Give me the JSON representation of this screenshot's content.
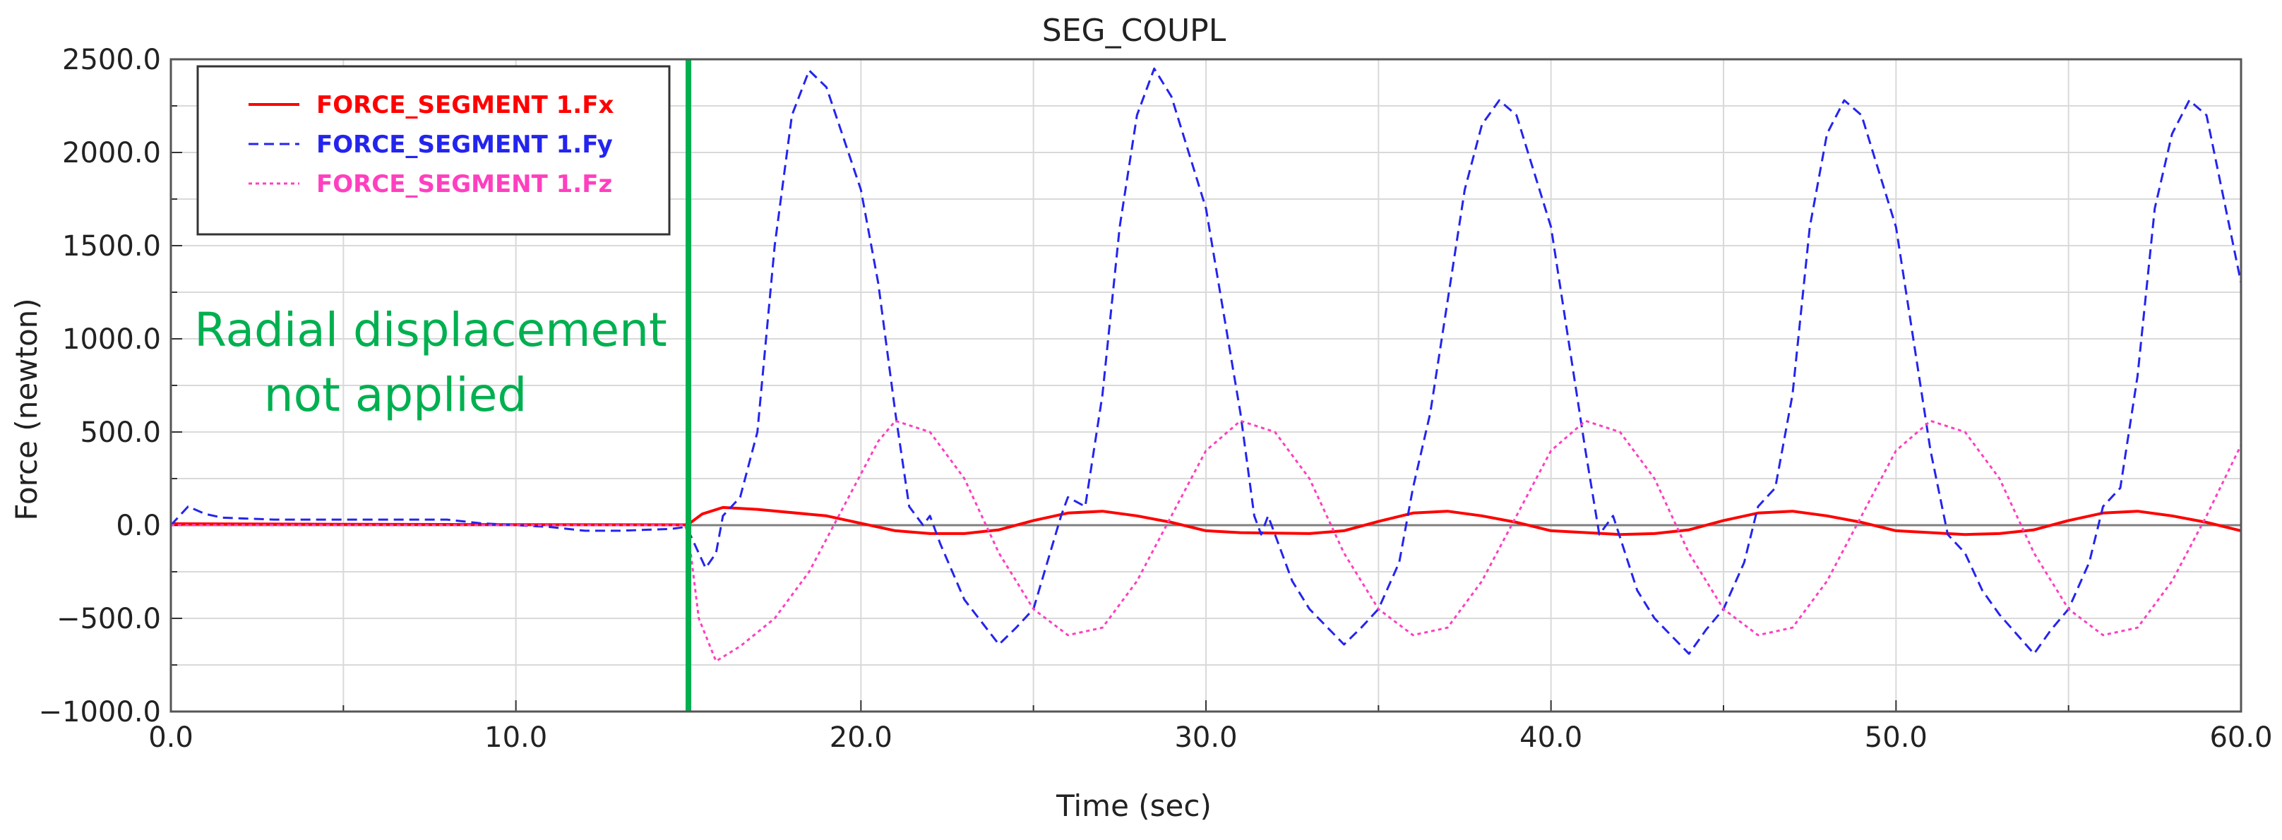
{
  "chart_data": {
    "type": "line",
    "title": "SEG_COUPL",
    "xlabel": "Time (sec)",
    "ylabel": "Force (newton)",
    "xlim": [
      0,
      60
    ],
    "ylim": [
      -1000,
      2500
    ],
    "x_ticks": [
      "0.0",
      "10.0",
      "20.0",
      "30.0",
      "40.0",
      "50.0",
      "60.0"
    ],
    "y_ticks": [
      "2500.0",
      "2000.0",
      "1500.0",
      "1000.0",
      "500.0",
      "0.0",
      "−500.0",
      "−1000.0"
    ],
    "x_tick_values": [
      0,
      10,
      20,
      30,
      40,
      50,
      60
    ],
    "y_tick_values": [
      2500,
      2000,
      1500,
      1000,
      500,
      0,
      -500,
      -1000
    ],
    "grid": true,
    "legend_position": "top-left",
    "marker_line": {
      "x": 15,
      "color": "#00b050",
      "label_line1": "Radial displacement",
      "label_line2": "not applied"
    },
    "series": [
      {
        "name": "FORCE_SEGMENT 1.Fx",
        "color": "#ff0000",
        "style": "solid",
        "points": [
          [
            0,
            8
          ],
          [
            5,
            5
          ],
          [
            10,
            3
          ],
          [
            14.9,
            2
          ],
          [
            15.0,
            5
          ],
          [
            15.4,
            60
          ],
          [
            16,
            95
          ],
          [
            17,
            85
          ],
          [
            19,
            50
          ],
          [
            21,
            -30
          ],
          [
            22,
            -45
          ],
          [
            23,
            -45
          ],
          [
            24,
            -25
          ],
          [
            25,
            25
          ],
          [
            26,
            65
          ],
          [
            27,
            75
          ],
          [
            28,
            50
          ],
          [
            29,
            15
          ],
          [
            30,
            -30
          ],
          [
            31,
            -40
          ],
          [
            33,
            -45
          ],
          [
            34,
            -30
          ],
          [
            35,
            20
          ],
          [
            36,
            65
          ],
          [
            37,
            75
          ],
          [
            38,
            50
          ],
          [
            39,
            15
          ],
          [
            40,
            -30
          ],
          [
            42,
            -50
          ],
          [
            43,
            -45
          ],
          [
            44,
            -25
          ],
          [
            45,
            25
          ],
          [
            46,
            65
          ],
          [
            47,
            75
          ],
          [
            48,
            50
          ],
          [
            49,
            15
          ],
          [
            50,
            -30
          ],
          [
            52,
            -50
          ],
          [
            53,
            -45
          ],
          [
            54,
            -25
          ],
          [
            55,
            25
          ],
          [
            56,
            65
          ],
          [
            57,
            75
          ],
          [
            58,
            50
          ],
          [
            59,
            15
          ],
          [
            60,
            -30
          ]
        ]
      },
      {
        "name": "FORCE_SEGMENT 1.Fy",
        "color": "#2424ee",
        "style": "dashed",
        "points": [
          [
            0,
            0
          ],
          [
            0.5,
            100
          ],
          [
            1,
            60
          ],
          [
            1.5,
            40
          ],
          [
            3,
            30
          ],
          [
            6,
            30
          ],
          [
            8,
            30
          ],
          [
            8.5,
            20
          ],
          [
            9,
            10
          ],
          [
            11,
            -10
          ],
          [
            12,
            -30
          ],
          [
            13,
            -30
          ],
          [
            14.5,
            -20
          ],
          [
            14.9,
            -10
          ],
          [
            15.0,
            -30
          ],
          [
            15.5,
            -230
          ],
          [
            15.8,
            -150
          ],
          [
            16,
            50
          ],
          [
            16.5,
            150
          ],
          [
            17,
            500
          ],
          [
            17.5,
            1500
          ],
          [
            18,
            2200
          ],
          [
            18.5,
            2440
          ],
          [
            19,
            2350
          ],
          [
            20,
            1800
          ],
          [
            20.5,
            1300
          ],
          [
            21,
            600
          ],
          [
            21.4,
            100
          ],
          [
            21.8,
            0
          ],
          [
            22,
            50
          ],
          [
            22.3,
            -100
          ],
          [
            23,
            -400
          ],
          [
            24,
            -640
          ],
          [
            24.5,
            -550
          ],
          [
            25,
            -450
          ],
          [
            25.8,
            50
          ],
          [
            26,
            150
          ],
          [
            26.5,
            100
          ],
          [
            27,
            700
          ],
          [
            27.5,
            1600
          ],
          [
            28,
            2200
          ],
          [
            28.5,
            2450
          ],
          [
            29,
            2300
          ],
          [
            30,
            1700
          ],
          [
            31,
            600
          ],
          [
            31.4,
            50
          ],
          [
            31.6,
            -50
          ],
          [
            31.8,
            50
          ],
          [
            32.5,
            -300
          ],
          [
            33,
            -450
          ],
          [
            34,
            -640
          ],
          [
            34.5,
            -550
          ],
          [
            35,
            -450
          ],
          [
            35.6,
            -200
          ],
          [
            36,
            200
          ],
          [
            36.5,
            600
          ],
          [
            37,
            1200
          ],
          [
            37.5,
            1800
          ],
          [
            38,
            2150
          ],
          [
            38.5,
            2280
          ],
          [
            39,
            2200
          ],
          [
            40,
            1600
          ],
          [
            40.5,
            1000
          ],
          [
            41,
            400
          ],
          [
            41.4,
            -50
          ],
          [
            41.8,
            50
          ],
          [
            42.5,
            -350
          ],
          [
            43,
            -500
          ],
          [
            44,
            -690
          ],
          [
            44.5,
            -560
          ],
          [
            45,
            -450
          ],
          [
            45.6,
            -200
          ],
          [
            46,
            100
          ],
          [
            46.5,
            200
          ],
          [
            47,
            700
          ],
          [
            47.5,
            1600
          ],
          [
            48,
            2100
          ],
          [
            48.5,
            2280
          ],
          [
            49,
            2200
          ],
          [
            50,
            1600
          ],
          [
            50.5,
            1000
          ],
          [
            51,
            400
          ],
          [
            51.5,
            -50
          ],
          [
            52,
            -150
          ],
          [
            52.5,
            -350
          ],
          [
            53,
            -480
          ],
          [
            54,
            -690
          ],
          [
            54.5,
            -560
          ],
          [
            55,
            -450
          ],
          [
            55.6,
            -200
          ],
          [
            56,
            100
          ],
          [
            56.5,
            200
          ],
          [
            57,
            800
          ],
          [
            57.5,
            1700
          ],
          [
            58,
            2100
          ],
          [
            58.5,
            2280
          ],
          [
            59,
            2200
          ],
          [
            60,
            1300
          ]
        ]
      },
      {
        "name": "FORCE_SEGMENT 1.Fz",
        "color": "#ff3fbf",
        "style": "dotted",
        "points": [
          [
            0,
            0
          ],
          [
            14.9,
            0
          ],
          [
            15.0,
            -50
          ],
          [
            15.3,
            -500
          ],
          [
            15.8,
            -730
          ],
          [
            16.5,
            -650
          ],
          [
            17.5,
            -500
          ],
          [
            18.5,
            -250
          ],
          [
            19.5,
            100
          ],
          [
            20.5,
            450
          ],
          [
            21,
            560
          ],
          [
            22,
            500
          ],
          [
            23,
            250
          ],
          [
            24,
            -150
          ],
          [
            25,
            -450
          ],
          [
            26,
            -590
          ],
          [
            27,
            -550
          ],
          [
            28,
            -300
          ],
          [
            29,
            50
          ],
          [
            30,
            400
          ],
          [
            31,
            560
          ],
          [
            32,
            500
          ],
          [
            33,
            250
          ],
          [
            34,
            -150
          ],
          [
            35,
            -450
          ],
          [
            36,
            -590
          ],
          [
            37,
            -550
          ],
          [
            38,
            -300
          ],
          [
            39,
            50
          ],
          [
            40,
            400
          ],
          [
            41,
            560
          ],
          [
            42,
            500
          ],
          [
            43,
            250
          ],
          [
            44,
            -150
          ],
          [
            45,
            -450
          ],
          [
            46,
            -590
          ],
          [
            47,
            -550
          ],
          [
            48,
            -300
          ],
          [
            49,
            50
          ],
          [
            50,
            400
          ],
          [
            51,
            560
          ],
          [
            52,
            500
          ],
          [
            53,
            250
          ],
          [
            54,
            -150
          ],
          [
            55,
            -450
          ],
          [
            56,
            -590
          ],
          [
            57,
            -550
          ],
          [
            58,
            -300
          ],
          [
            59,
            50
          ],
          [
            60,
            430
          ]
        ]
      }
    ]
  }
}
